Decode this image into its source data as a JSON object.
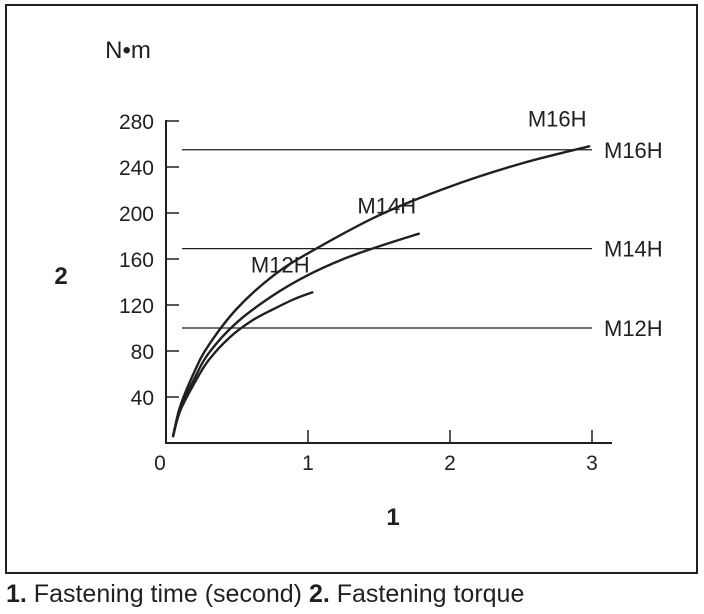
{
  "chart_data": {
    "type": "line",
    "unit_label": "N•m",
    "x_axis_marker": "1",
    "y_axis_marker": "2",
    "x_ticks": [
      {
        "value": 0,
        "label": "0"
      },
      {
        "value": 1,
        "label": "1"
      },
      {
        "value": 2,
        "label": "2"
      },
      {
        "value": 3,
        "label": "3"
      }
    ],
    "y_ticks": [
      {
        "value": 40,
        "label": "40"
      },
      {
        "value": 80,
        "label": "80"
      },
      {
        "value": 120,
        "label": "120"
      },
      {
        "value": 160,
        "label": "160"
      },
      {
        "value": 200,
        "label": "200"
      },
      {
        "value": 240,
        "label": "240"
      },
      {
        "value": 280,
        "label": "280"
      }
    ],
    "xlim": [
      0,
      3
    ],
    "ylim": [
      0,
      280
    ],
    "reference_lines": [
      {
        "name": "M12H",
        "value": 100
      },
      {
        "name": "M14H",
        "value": 169
      },
      {
        "name": "M16H",
        "value": 255
      }
    ],
    "series": [
      {
        "name": "M12H",
        "points": [
          [
            0.05,
            6
          ],
          [
            0.1,
            28
          ],
          [
            0.2,
            52
          ],
          [
            0.3,
            72
          ],
          [
            0.45,
            92
          ],
          [
            0.6,
            106
          ],
          [
            0.75,
            116
          ],
          [
            0.9,
            125
          ],
          [
            1.03,
            131
          ]
        ]
      },
      {
        "name": "M14H",
        "points": [
          [
            0.05,
            6
          ],
          [
            0.1,
            30
          ],
          [
            0.2,
            56
          ],
          [
            0.3,
            78
          ],
          [
            0.5,
            105
          ],
          [
            0.75,
            128
          ],
          [
            1.0,
            146
          ],
          [
            1.25,
            160
          ],
          [
            1.5,
            171
          ],
          [
            1.78,
            182
          ]
        ]
      },
      {
        "name": "M16H",
        "points": [
          [
            0.05,
            6
          ],
          [
            0.1,
            32
          ],
          [
            0.2,
            62
          ],
          [
            0.3,
            85
          ],
          [
            0.5,
            117
          ],
          [
            0.75,
            145
          ],
          [
            1.0,
            165
          ],
          [
            1.5,
            198
          ],
          [
            2.0,
            223
          ],
          [
            2.5,
            243
          ],
          [
            2.98,
            258
          ]
        ]
      }
    ]
  },
  "caption": {
    "num1": "1.",
    "text1": " Fastening time (second) ",
    "num2": "2.",
    "text2": " Fastening torque"
  }
}
